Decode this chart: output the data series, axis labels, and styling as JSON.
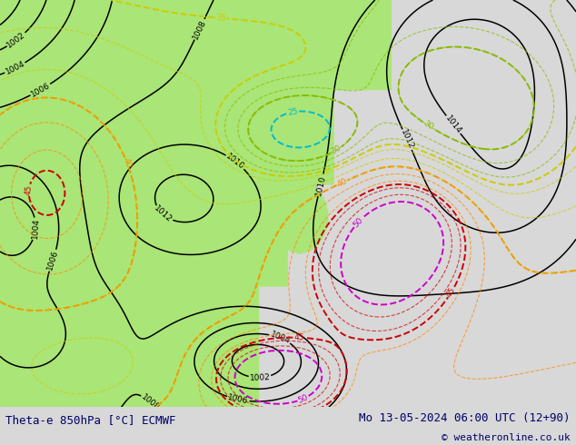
{
  "title_left": "Theta-e 850hPa [°C] ECMWF",
  "title_right": "Mo 13-05-2024 06:00 UTC (12+90)",
  "copyright": "© weatheronline.co.uk",
  "bg_color": "#d8d8d8",
  "green_color": [
    0.67,
    0.9,
    0.47
  ],
  "sea_gray_color": [
    0.75,
    0.75,
    0.75
  ],
  "light_gray_color": [
    0.85,
    0.85,
    0.85
  ],
  "isobar_color": "#000000",
  "theta_colors": {
    "25": "#00bbcc",
    "30": "#88bb00",
    "35": "#cccc00",
    "40": "#ff8800",
    "45": "#cc0000",
    "50": "#cc00cc"
  },
  "font_color": "#000066",
  "figsize": [
    6.34,
    4.9
  ],
  "dpi": 100
}
